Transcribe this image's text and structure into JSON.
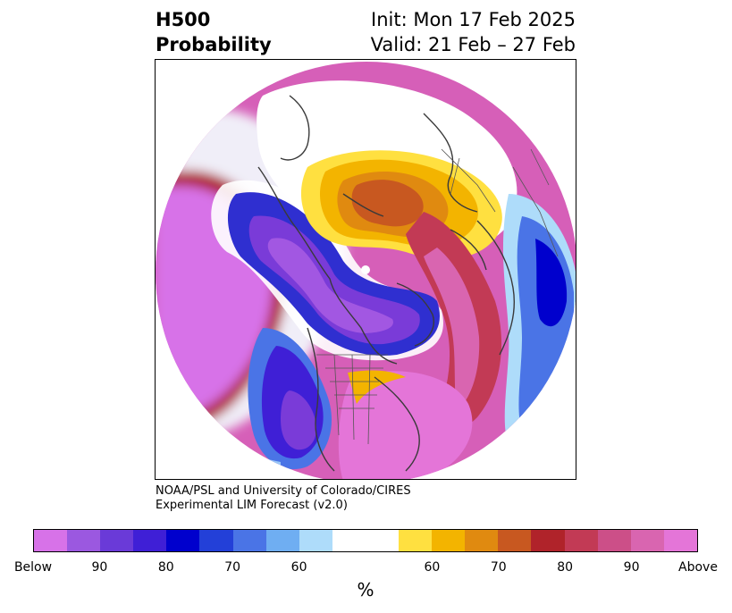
{
  "title": {
    "left_line1": "H500",
    "left_line2": "Probability",
    "right_line1": "Init: Mon 17 Feb 2025",
    "right_line2": "Valid: 21 Feb – 27 Feb"
  },
  "credit": {
    "line1": "NOAA/PSL and University of Colorado/CIRES",
    "line2": "Experimental LIM Forecast (v2.0)"
  },
  "colorbar": {
    "colors": [
      "#d772e8",
      "#9b58e0",
      "#6a3ad8",
      "#3f1fd6",
      "#0000cd",
      "#2340d8",
      "#4a74e6",
      "#6faef2",
      "#aedcfa",
      "#ffffff",
      "#ffe040",
      "#f3b400",
      "#e08a10",
      "#c85820",
      "#b0232a",
      "#c23a55",
      "#cc4f88",
      "#d965b0",
      "#e475d8"
    ],
    "tick_labels": [
      "Below",
      "90",
      "80",
      "70",
      "60",
      "60",
      "70",
      "80",
      "90",
      "Above"
    ],
    "unit": "%"
  },
  "map": {
    "projection": "north polar stereographic",
    "features": [
      "coastlines",
      "country borders",
      "US state borders"
    ]
  }
}
